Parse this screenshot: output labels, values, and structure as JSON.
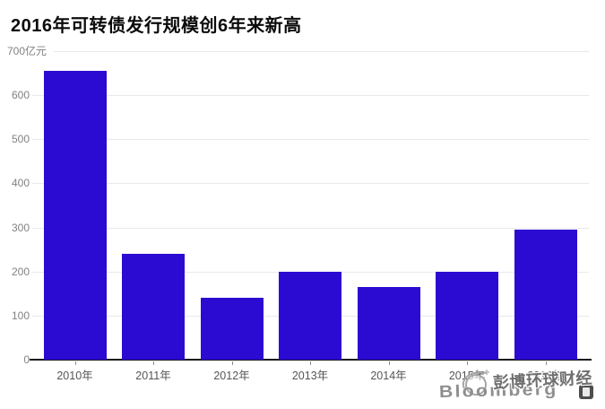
{
  "title": "2016年可转债发行规模创6年来新高",
  "chart_data": {
    "type": "bar",
    "title": "2016年可转债发行规模创6年来新高",
    "categories": [
      "2010年",
      "2011年",
      "2012年",
      "2013年",
      "2014年",
      "2015年",
      "2016年"
    ],
    "values": [
      655,
      240,
      140,
      200,
      165,
      200,
      295
    ],
    "xlabel": "",
    "ylabel": "",
    "ylabel_top": "700亿元",
    "ytick_labels": [
      "0",
      "100",
      "200",
      "300",
      "400",
      "500",
      "600"
    ],
    "ylim": [
      0,
      700
    ],
    "ytick_interval": 100,
    "grid": "horizontal",
    "legend": "none",
    "bar_color": "#2b0ad2",
    "gridline_color": "#e9e9e9",
    "axis_color": "#1b1b1b",
    "tick_label_color": "#828282",
    "xtick_label_color": "#555555"
  },
  "watermark": {
    "brand": "Bloomberg",
    "cn_text": "彭博环球财经",
    "icons": {
      "globe": "globe-icon",
      "badge": "bloomberg-app-badge-icon"
    }
  }
}
